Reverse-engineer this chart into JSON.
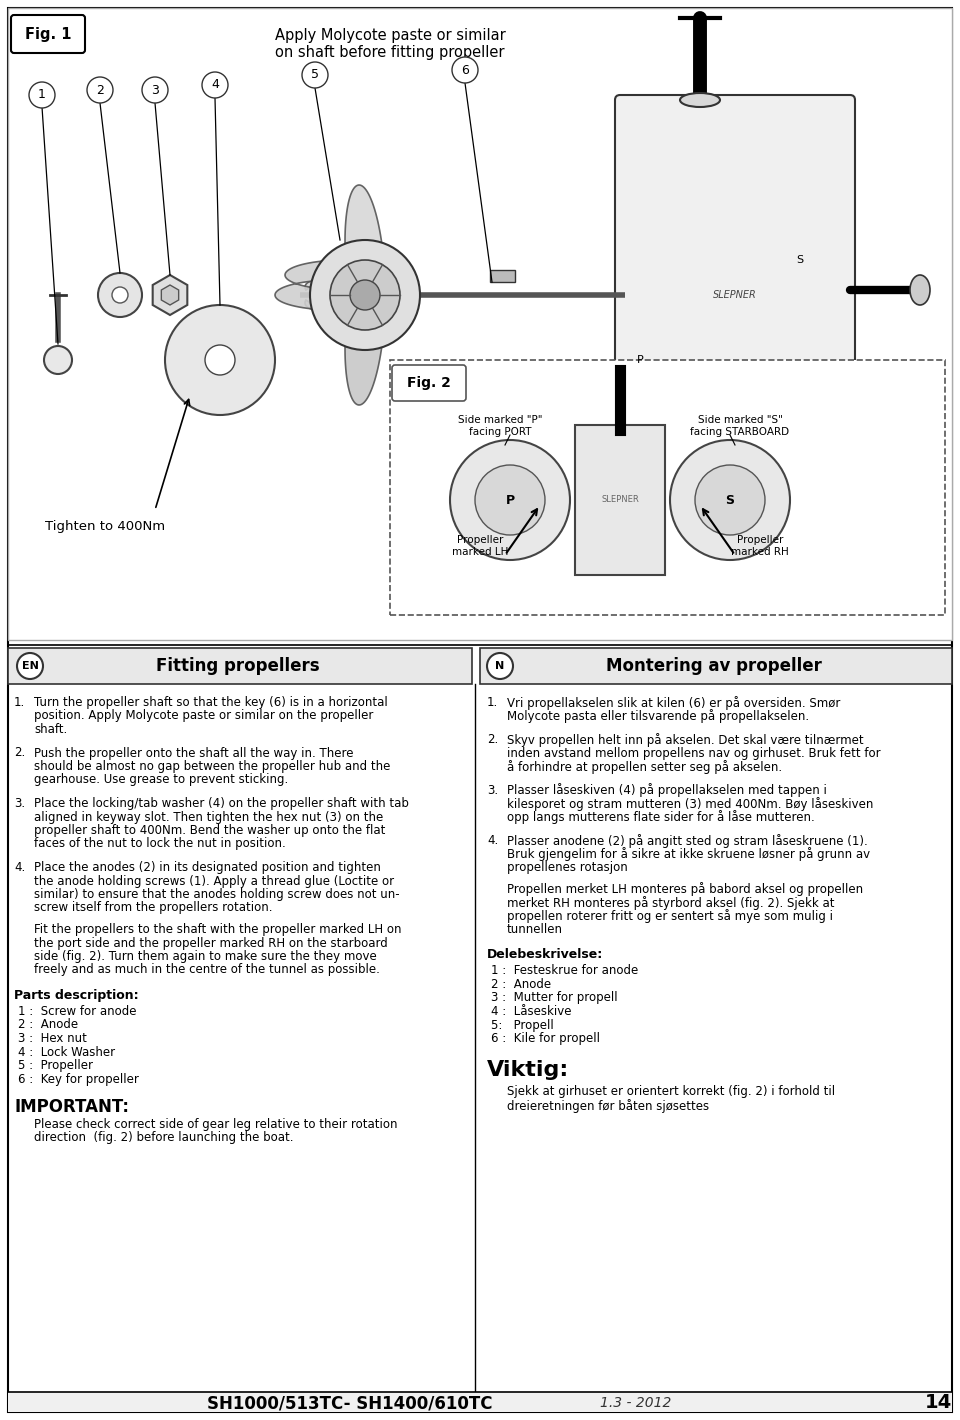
{
  "page_bg": "#ffffff",
  "fig1_label": "Fig. 1",
  "fig2_label": "Fig. 2",
  "fig1_annotation": "Apply Molycote paste or similar\non shaft before fitting propeller",
  "fig2_tighten": "Tighten to 400Nm",
  "fig2_side_p": "Side marked \"P\"\nfacing PORT",
  "fig2_side_s": "Side marked \"S\"\nfacing STARBOARD",
  "fig2_prop_lh": "Propeller\nmarked LH",
  "fig2_prop_rh": "Propeller\nmarked RH",
  "en_header": "Fitting propellers",
  "n_header": "Montering av propeller",
  "en_icon": "EN",
  "n_icon": "N",
  "en_text_1_num": "1.",
  "en_text_1": "Turn the propeller shaft so that the key (6) is in a horizontal\nposition. Apply Molycote paste or similar on the propeller\nshaft.",
  "en_text_2_num": "2.",
  "en_text_2": "Push the propeller onto the shaft all the way in. There\nshould be almost no gap between the propeller hub and the\ngearhouse. Use grease to prevent sticking.",
  "en_text_3_num": "3.",
  "en_text_3": "Place the locking/tab washer (4) on the propeller shaft with tab\naligned in keyway slot. Then tighten the hex nut (3) on the\npropeller shaft to 400Nm. Bend the washer up onto the flat\nfaces of the nut to lock the nut in position.",
  "en_text_4_num": "4.",
  "en_text_4": "Place the anodes (2) in its designated position and tighten\nthe anode holding screws (1). Apply a thread glue (Loctite or\nsimilar) to ensure that the anodes holding screw does not un-\nscrew itself from the propellers rotation.",
  "en_text_5": "Fit the propellers to the shaft with the propeller marked LH on\nthe port side and the propeller marked RH on the starboard\nside (fig. 2). Turn them again to make sure the they move\nfreely and as much in the centre of the tunnel as possible.",
  "en_parts_header": "Parts description:",
  "en_parts_lines": [
    "1 :  Screw for anode",
    "2 :  Anode",
    "3 :  Hex nut",
    "4 :  Lock Washer",
    "5 :  Propeller",
    "6 :  Key for propeller"
  ],
  "en_important_header": "IMPORTANT:",
  "en_important_text": "Please check correct side of gear leg relative to their rotation\ndirection  (fig. 2) before launching the boat.",
  "n_text_1_num": "1.",
  "n_text_1": "Vri propellakselen slik at kilen (6) er på oversiden. Smør\nMolycote pasta eller tilsvarende på propellakselen.",
  "n_text_2_num": "2.",
  "n_text_2": "Skyv propellen helt inn på akselen. Det skal være tilnærmet\ninden avstand mellom propellens nav og girhuset. Bruk fett for\nå forhindre at propellen setter seg på akselen.",
  "n_text_3_num": "3.",
  "n_text_3": "Plasser låseskiven (4) på propellakselen med tappen i\nkilesporet og stram mutteren (3) med 400Nm. Bøy låseskiven\nopp langs mutterens flate sider for å låse mutteren.",
  "n_text_4_num": "4.",
  "n_text_4": "Plasser anodene (2) på angitt sted og stram låseskruene (1).\nBruk gjengelim for å sikre at ikke skruene løsner på grunn av\npropellenes rotasjon",
  "n_text_5": "Propellen merket LH monteres på babord aksel og propellen\nmerket RH monteres på styrbord aksel (fig. 2). Sjekk at\npropellen roterer fritt og er sentert så mye som mulig i\ntunnellen",
  "n_parts_header": "Delebeskrivelse:",
  "n_parts_lines": [
    "1 :  Festeskrue for anode",
    "2 :  Anode",
    "3 :  Mutter for propell",
    "4 :  Låseskive",
    "5:   Propell",
    "6 :  Kile for propell"
  ],
  "n_viktig_header": "Viktig:",
  "n_viktig_text": "Sjekk at girhuset er orientert korrekt (fig. 2) i forhold til\ndreieretningen før båten sjøsettes",
  "footer_model": "SH1000/513TC- SH1400/610TC",
  "footer_date": "1.3 - 2012",
  "footer_page": "14"
}
